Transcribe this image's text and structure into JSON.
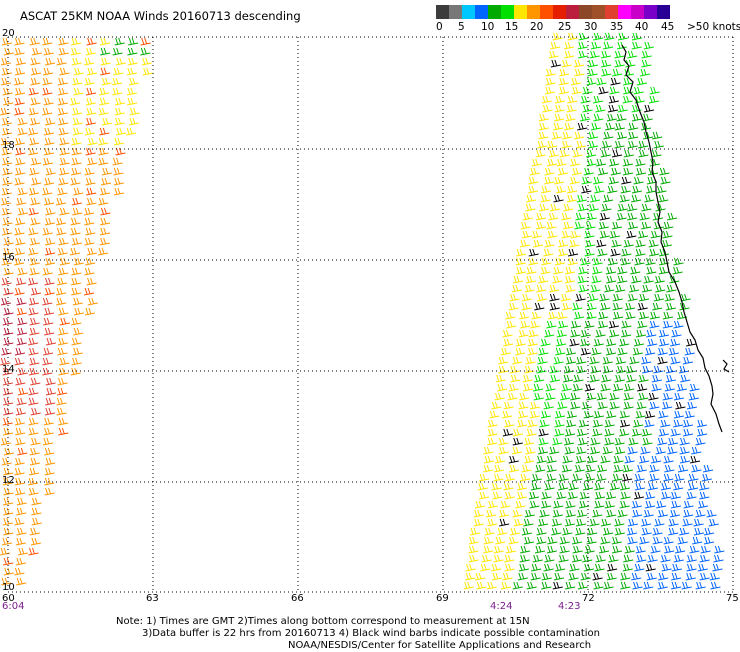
{
  "title": "ASCAT 25KM NOAA Winds 20160713 descending",
  "legend": {
    "colors": [
      "#3c3c3c",
      "#787878",
      "#00c8ff",
      "#0064ff",
      "#00aa00",
      "#00e000",
      "#ffe600",
      "#ff9600",
      "#ff5000",
      "#e61e00",
      "#bb1e3c",
      "#8c4628",
      "#a05028",
      "#e04030",
      "#ff00ff",
      "#c800c8",
      "#7800c8",
      "#280096"
    ],
    "labels": [
      "0",
      "5",
      "10",
      "15",
      "20",
      "25",
      "30",
      "35",
      "40",
      "45",
      ">50 knots"
    ]
  },
  "axes": {
    "lat_labels": [
      "20",
      "18",
      "16",
      "14",
      "12",
      "10"
    ],
    "lon_labels": [
      "60",
      "63",
      "66",
      "69",
      "72",
      "75"
    ],
    "time_labels": [
      "6:04",
      "4:24",
      "4:23"
    ],
    "time_color": "#7a1e8c"
  },
  "footer": {
    "line1": "Note: 1) Times are GMT 2)Times along bottom correspond to measurement at 15N",
    "line2": "3)Data buffer is 22 hrs from 20160713 4) Black wind barbs indicate possible contamination",
    "line3": "NOAA/NESDIS/Center for Satellite Applications and Research"
  }
}
